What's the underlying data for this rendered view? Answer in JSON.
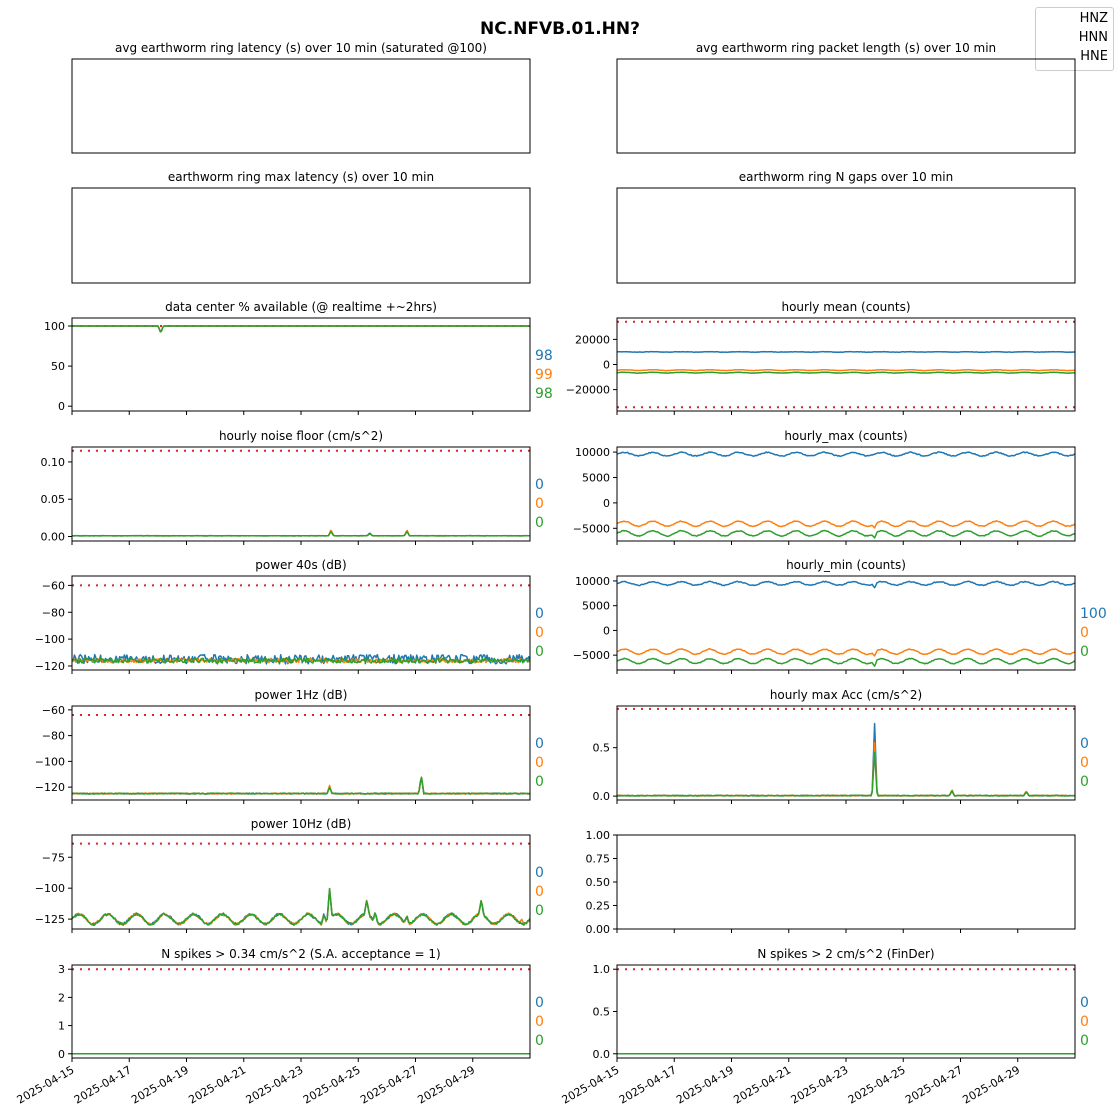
{
  "figure_title": "NC.NFVB.01.HN?",
  "legend": [
    "HNZ",
    "HNN",
    "HNE"
  ],
  "colors": {
    "HNZ": "#1f77b4",
    "HNN": "#ff7f0e",
    "HNE": "#2ca02c",
    "threshold": "#d62728"
  },
  "x_axis": {
    "range": [
      "2025-04-15",
      "2025-05-01"
    ],
    "tick_labels": [
      "2025-04-15",
      "2025-04-17",
      "2025-04-19",
      "2025-04-21",
      "2025-04-23",
      "2025-04-25",
      "2025-04-27",
      "2025-04-29"
    ]
  },
  "chart_data": [
    {
      "id": "avg-latency",
      "type": "line",
      "title": "avg earthworm ring latency (s)   over 10 min (saturated @100)",
      "yticks": [],
      "ylim": [
        0,
        1
      ],
      "series": []
    },
    {
      "id": "avg-packet-length",
      "type": "line",
      "title": "avg earthworm ring packet length (s)   over 10 min",
      "yticks": [],
      "ylim": [
        0,
        1
      ],
      "series": []
    },
    {
      "id": "max-latency",
      "type": "line",
      "title": "earthworm ring max latency (s)   over 10 min",
      "yticks": [],
      "ylim": [
        0,
        1
      ],
      "series": []
    },
    {
      "id": "n-gaps",
      "type": "line",
      "title": "earthworm ring N gaps   over 10 min",
      "yticks": [],
      "ylim": [
        0,
        1
      ],
      "series": []
    },
    {
      "id": "pct-available",
      "type": "line",
      "title": "data center % available (@ realtime +~2hrs)",
      "ylim": [
        -6,
        110
      ],
      "yticks": [
        {
          "v": 100,
          "l": "100"
        },
        {
          "v": 50,
          "l": "50"
        },
        {
          "v": 0,
          "l": "0"
        }
      ],
      "threshold": 100,
      "side_values": [
        "98",
        "99",
        "98"
      ],
      "series": [
        {
          "name": "HNZ",
          "base": 100,
          "noise": 0,
          "events": [
            [
              3.1,
              -8
            ]
          ]
        },
        {
          "name": "HNN",
          "base": 100,
          "noise": 0,
          "events": [
            [
              3.1,
              -8
            ]
          ]
        },
        {
          "name": "HNE",
          "base": 100,
          "noise": 0,
          "events": [
            [
              3.1,
              -9
            ]
          ]
        }
      ]
    },
    {
      "id": "hourly-mean",
      "type": "line",
      "title": "hourly mean (counts)",
      "ylim": [
        -37000,
        37000
      ],
      "yticks": [
        {
          "v": 20000,
          "l": "20000"
        },
        {
          "v": 0,
          "l": "0"
        },
        {
          "v": -20000,
          "l": "−20000"
        }
      ],
      "threshold": [
        34000,
        -34000
      ],
      "side_values": [],
      "series": [
        {
          "name": "HNZ",
          "base": 10000,
          "noise": 150,
          "daily": 150,
          "events": []
        },
        {
          "name": "HNN",
          "base": -4500,
          "noise": 100,
          "daily": 300,
          "events": []
        },
        {
          "name": "HNE",
          "base": -6500,
          "noise": 100,
          "daily": 300,
          "events": []
        }
      ]
    },
    {
      "id": "noise-floor",
      "type": "line",
      "title": "hourly noise floor (cm/s^2)",
      "ylim": [
        -0.006,
        0.12
      ],
      "yticks": [
        {
          "v": 0.1,
          "l": "0.10"
        },
        {
          "v": 0.05,
          "l": "0.05"
        },
        {
          "v": 0,
          "l": "0.00"
        }
      ],
      "threshold": 0.115,
      "side_values": [
        "0",
        "0",
        "0"
      ],
      "series": [
        {
          "name": "HNZ",
          "base": 0.001,
          "noise": 0.0002,
          "events": [
            [
              9.05,
              0.006
            ],
            [
              10.4,
              0.004
            ],
            [
              11.7,
              0.007
            ]
          ]
        },
        {
          "name": "HNN",
          "base": 0.001,
          "noise": 0.0002,
          "events": [
            [
              9.05,
              0.008
            ],
            [
              10.4,
              0.003
            ],
            [
              11.7,
              0.008
            ]
          ]
        },
        {
          "name": "HNE",
          "base": 0.001,
          "noise": 0.0002,
          "events": [
            [
              9.05,
              0.006
            ],
            [
              10.4,
              0.003
            ],
            [
              11.7,
              0.006
            ]
          ]
        }
      ]
    },
    {
      "id": "hourly-max",
      "type": "line",
      "title": "hourly_max (counts)",
      "ylim": [
        -7500,
        11000
      ],
      "yticks": [
        {
          "v": 10000,
          "l": "10000"
        },
        {
          "v": 5000,
          "l": "5000"
        },
        {
          "v": 0,
          "l": "0"
        },
        {
          "v": -5000,
          "l": "−5000"
        }
      ],
      "side_values": [],
      "series": [
        {
          "name": "HNZ",
          "base": 9600,
          "noise": 100,
          "daily": 350,
          "events": []
        },
        {
          "name": "HNN",
          "base": -4100,
          "noise": 80,
          "daily": 500,
          "events": [
            [
              9.0,
              -800
            ]
          ]
        },
        {
          "name": "HNE",
          "base": -6000,
          "noise": 80,
          "daily": 500,
          "events": [
            [
              9.0,
              -900
            ]
          ]
        }
      ]
    },
    {
      "id": "power-40s",
      "type": "line",
      "title": "power 40s (dB)",
      "ylim": [
        -123,
        -53
      ],
      "yticks": [
        {
          "v": -60,
          "l": "−60"
        },
        {
          "v": -80,
          "l": "−80"
        },
        {
          "v": -100,
          "l": "−100"
        },
        {
          "v": -120,
          "l": "−120"
        }
      ],
      "threshold": -60,
      "side_values": [
        "0",
        "0",
        "0"
      ],
      "series": [
        {
          "name": "HNZ",
          "base": -115,
          "noise": 3.5,
          "events": []
        },
        {
          "name": "HNN",
          "base": -116,
          "noise": 1.5,
          "events": []
        },
        {
          "name": "HNE",
          "base": -116,
          "noise": 1.8,
          "events": []
        }
      ]
    },
    {
      "id": "hourly-min",
      "type": "line",
      "title": "hourly_min (counts)",
      "ylim": [
        -8000,
        11000
      ],
      "yticks": [
        {
          "v": 10000,
          "l": "10000"
        },
        {
          "v": 5000,
          "l": "5000"
        },
        {
          "v": 0,
          "l": "0"
        },
        {
          "v": -5000,
          "l": "−5000"
        }
      ],
      "side_values": [
        "100",
        "0",
        "0"
      ],
      "series": [
        {
          "name": "HNZ",
          "base": 9500,
          "noise": 100,
          "daily": 350,
          "events": [
            [
              9.0,
              -900
            ]
          ]
        },
        {
          "name": "HNN",
          "base": -4300,
          "noise": 80,
          "daily": 500,
          "events": [
            [
              9.0,
              -900
            ]
          ]
        },
        {
          "name": "HNE",
          "base": -6200,
          "noise": 80,
          "daily": 500,
          "events": [
            [
              9.0,
              -1100
            ]
          ]
        }
      ]
    },
    {
      "id": "power-1hz",
      "type": "line",
      "title": "power 1Hz (dB)",
      "ylim": [
        -130,
        -57
      ],
      "yticks": [
        {
          "v": -60,
          "l": "−60"
        },
        {
          "v": -80,
          "l": "−80"
        },
        {
          "v": -100,
          "l": "−100"
        },
        {
          "v": -120,
          "l": "−120"
        }
      ],
      "threshold": -64,
      "side_values": [
        "0",
        "0",
        "0"
      ],
      "series": [
        {
          "name": "HNZ",
          "base": -125,
          "noise": 0.4,
          "events": [
            [
              9.0,
              5
            ],
            [
              12.2,
              13
            ]
          ]
        },
        {
          "name": "HNN",
          "base": -125,
          "noise": 0.4,
          "events": [
            [
              9.0,
              6
            ],
            [
              12.2,
              14
            ]
          ]
        },
        {
          "name": "HNE",
          "base": -125,
          "noise": 0.4,
          "events": [
            [
              9.0,
              5
            ],
            [
              12.2,
              14
            ]
          ]
        }
      ]
    },
    {
      "id": "max-acc",
      "type": "line",
      "title": "hourly max Acc (cm/s^2)",
      "ylim": [
        -0.04,
        0.93
      ],
      "yticks": [
        {
          "v": 0.5,
          "l": "0.5"
        },
        {
          "v": 0,
          "l": "0.0"
        }
      ],
      "threshold": 0.9,
      "side_values": [
        "0",
        "0",
        "0"
      ],
      "series": [
        {
          "name": "HNZ",
          "base": 0.005,
          "noise": 0.004,
          "events": [
            [
              9.0,
              0.74
            ],
            [
              11.7,
              0.05
            ],
            [
              14.3,
              0.04
            ]
          ]
        },
        {
          "name": "HNN",
          "base": 0.005,
          "noise": 0.004,
          "events": [
            [
              9.0,
              0.55
            ],
            [
              11.7,
              0.06
            ],
            [
              14.3,
              0.05
            ]
          ]
        },
        {
          "name": "HNE",
          "base": 0.005,
          "noise": 0.004,
          "events": [
            [
              9.0,
              0.45
            ],
            [
              11.7,
              0.05
            ],
            [
              14.3,
              0.04
            ]
          ]
        }
      ]
    },
    {
      "id": "power-10hz",
      "type": "line",
      "title": "power 10Hz (dB)",
      "ylim": [
        -133,
        -57
      ],
      "yticks": [
        {
          "v": -75,
          "l": "−75"
        },
        {
          "v": -100,
          "l": "−100"
        },
        {
          "v": -125,
          "l": "−125"
        }
      ],
      "threshold": -64,
      "side_values": [
        "0",
        "0",
        "0"
      ],
      "series": [
        {
          "name": "HNZ",
          "base": -125,
          "noise": 1,
          "daily": 4,
          "events": [
            [
              8.8,
              8
            ],
            [
              9.0,
              25
            ],
            [
              10.3,
              12
            ],
            [
              10.6,
              8
            ],
            [
              11.7,
              6
            ],
            [
              14.3,
              12
            ]
          ]
        },
        {
          "name": "HNN",
          "base": -125,
          "noise": 1,
          "daily": 4,
          "events": [
            [
              8.8,
              8
            ],
            [
              9.0,
              25
            ],
            [
              10.3,
              12
            ],
            [
              10.6,
              8
            ],
            [
              11.7,
              6
            ],
            [
              14.3,
              12
            ],
            [
              15.7,
              4
            ]
          ]
        },
        {
          "name": "HNE",
          "base": -125,
          "noise": 1,
          "daily": 4,
          "events": [
            [
              8.8,
              8
            ],
            [
              9.0,
              25
            ],
            [
              10.3,
              12
            ],
            [
              10.6,
              8
            ],
            [
              11.7,
              6
            ],
            [
              14.3,
              12
            ]
          ]
        }
      ]
    },
    {
      "id": "empty-panel",
      "type": "line",
      "title": "",
      "ylim": [
        0,
        1
      ],
      "yticks": [
        {
          "v": 1,
          "l": "1.00"
        },
        {
          "v": 0.75,
          "l": "0.75"
        },
        {
          "v": 0.5,
          "l": "0.50"
        },
        {
          "v": 0.25,
          "l": "0.25"
        },
        {
          "v": 0,
          "l": "0.00"
        }
      ],
      "series": []
    },
    {
      "id": "spikes-034",
      "type": "line",
      "title": "N spikes > 0.34 cm/s^2 (S.A. acceptance = 1)",
      "ylim": [
        -0.15,
        3.15
      ],
      "yticks": [
        {
          "v": 3,
          "l": "3"
        },
        {
          "v": 2,
          "l": "2"
        },
        {
          "v": 1,
          "l": "1"
        },
        {
          "v": 0,
          "l": "0"
        }
      ],
      "threshold": 3,
      "side_values": [
        "0",
        "0",
        "0"
      ],
      "series": [
        {
          "name": "HNZ",
          "base": 0,
          "noise": 0,
          "events": []
        },
        {
          "name": "HNN",
          "base": 0,
          "noise": 0,
          "events": []
        },
        {
          "name": "HNE",
          "base": 0,
          "noise": 0,
          "events": []
        }
      ]
    },
    {
      "id": "spikes-2",
      "type": "line",
      "title": "N spikes > 2 cm/s^2 (FinDer)",
      "ylim": [
        -0.05,
        1.05
      ],
      "yticks": [
        {
          "v": 1,
          "l": "1.0"
        },
        {
          "v": 0.5,
          "l": "0.5"
        },
        {
          "v": 0,
          "l": "0.0"
        }
      ],
      "threshold": 1,
      "side_values": [
        "0",
        "0",
        "0"
      ],
      "series": [
        {
          "name": "HNZ",
          "base": 0,
          "noise": 0,
          "events": []
        },
        {
          "name": "HNN",
          "base": 0,
          "noise": 0,
          "events": []
        },
        {
          "name": "HNE",
          "base": 0,
          "noise": 0,
          "events": []
        }
      ]
    }
  ]
}
